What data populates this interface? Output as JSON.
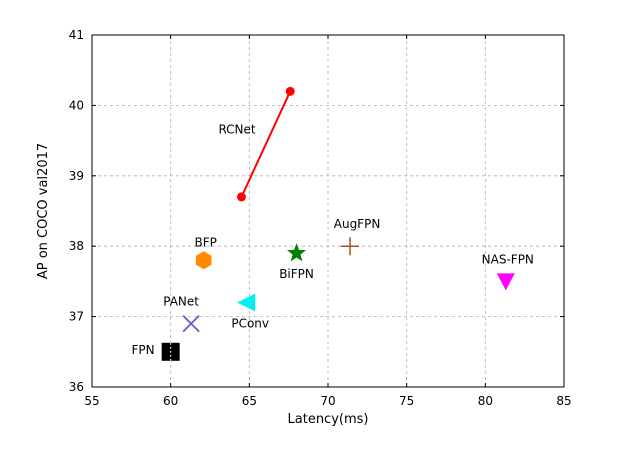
{
  "chart_data": {
    "type": "scatter",
    "xlabel": "Latency(ms)",
    "ylabel": "AP on COCO val2017",
    "xlim": [
      55,
      85
    ],
    "ylim": [
      36,
      41
    ],
    "xticks": [
      55,
      60,
      65,
      70,
      75,
      80,
      85
    ],
    "yticks": [
      36,
      37,
      38,
      39,
      40,
      41
    ],
    "grid": true,
    "line_series": {
      "name": "RCNet",
      "color": "#ff0000",
      "points": [
        {
          "x": 64.5,
          "y": 38.7
        },
        {
          "x": 67.6,
          "y": 40.2
        }
      ]
    },
    "points": [
      {
        "name": "FPN",
        "x": 60.0,
        "y": 36.5,
        "marker": "square",
        "color": "#000000"
      },
      {
        "name": "PANet",
        "x": 61.3,
        "y": 36.9,
        "marker": "x",
        "color": "#6a5acd"
      },
      {
        "name": "PConv",
        "x": 64.8,
        "y": 37.2,
        "marker": "triangle-left",
        "color": "#00f0f0"
      },
      {
        "name": "BFP",
        "x": 62.1,
        "y": 37.8,
        "marker": "hexagon",
        "color": "#ff8c00"
      },
      {
        "name": "BiFPN",
        "x": 68.0,
        "y": 37.9,
        "marker": "star",
        "color": "#008000"
      },
      {
        "name": "AugFPN",
        "x": 71.4,
        "y": 38.0,
        "marker": "plus",
        "color": "#a0522d"
      },
      {
        "name": "NAS-FPN",
        "x": 81.3,
        "y": 37.5,
        "marker": "triangle-down",
        "color": "#ff00ff"
      }
    ]
  }
}
